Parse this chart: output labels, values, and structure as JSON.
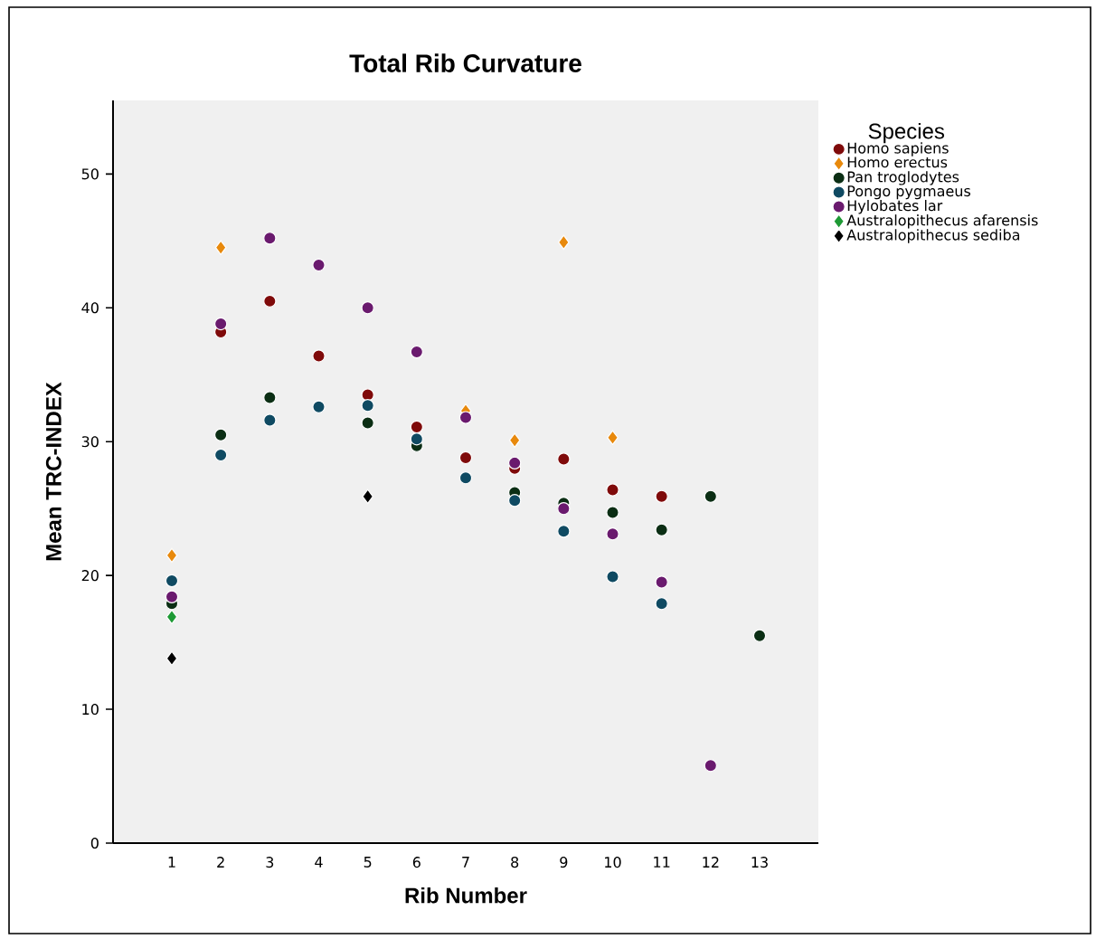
{
  "chart_data": {
    "type": "scatter",
    "title": "Total Rib Curvature",
    "xlabel": "Rib Number",
    "ylabel": "Mean TRC-INDEX",
    "legend_title": "Species",
    "categories": [
      "1",
      "2",
      "3",
      "4",
      "5",
      "6",
      "7",
      "8",
      "9",
      "10",
      "11",
      "12",
      "13"
    ],
    "ylim": [
      0,
      55.5
    ],
    "yticks": [
      0,
      10,
      20,
      30,
      40,
      50
    ],
    "grid": false,
    "legend": "right",
    "series": [
      {
        "name": "Homo sapiens",
        "color": "#7f0a0a",
        "marker": "circle",
        "values": [
          null,
          38.2,
          40.5,
          36.4,
          33.5,
          31.1,
          28.8,
          28.0,
          28.7,
          26.4,
          25.9,
          null,
          null
        ]
      },
      {
        "name": "Homo erectus",
        "color": "#e8890c",
        "marker": "diamond",
        "values": [
          21.5,
          44.5,
          null,
          null,
          null,
          null,
          32.3,
          30.1,
          44.9,
          30.3,
          null,
          null,
          null
        ]
      },
      {
        "name": "Pan troglodytes",
        "color": "#0b2e14",
        "marker": "circle",
        "values": [
          17.9,
          30.5,
          33.3,
          null,
          31.4,
          29.7,
          null,
          26.2,
          25.4,
          24.7,
          23.4,
          25.9,
          15.5
        ]
      },
      {
        "name": "Pongo pygmaeus",
        "color": "#0f4a62",
        "marker": "circle",
        "values": [
          19.6,
          29.0,
          31.6,
          32.6,
          32.7,
          30.2,
          27.3,
          25.6,
          23.3,
          19.9,
          17.9,
          null,
          null
        ]
      },
      {
        "name": "Hylobates lar",
        "color": "#6a1a6e",
        "marker": "circle",
        "values": [
          18.4,
          38.8,
          45.2,
          43.2,
          40.0,
          36.7,
          31.8,
          28.4,
          25.0,
          23.1,
          19.5,
          5.8,
          null
        ]
      },
      {
        "name": "Australopithecus afarensis",
        "color": "#1e9a35",
        "marker": "diamond",
        "values": [
          16.9,
          null,
          null,
          null,
          null,
          null,
          null,
          null,
          null,
          null,
          null,
          null,
          null
        ]
      },
      {
        "name": "Australopithecus sediba",
        "color": "#000000",
        "marker": "diamond",
        "values": [
          13.8,
          null,
          null,
          null,
          25.9,
          null,
          null,
          null,
          null,
          null,
          null,
          null,
          null
        ]
      }
    ]
  }
}
